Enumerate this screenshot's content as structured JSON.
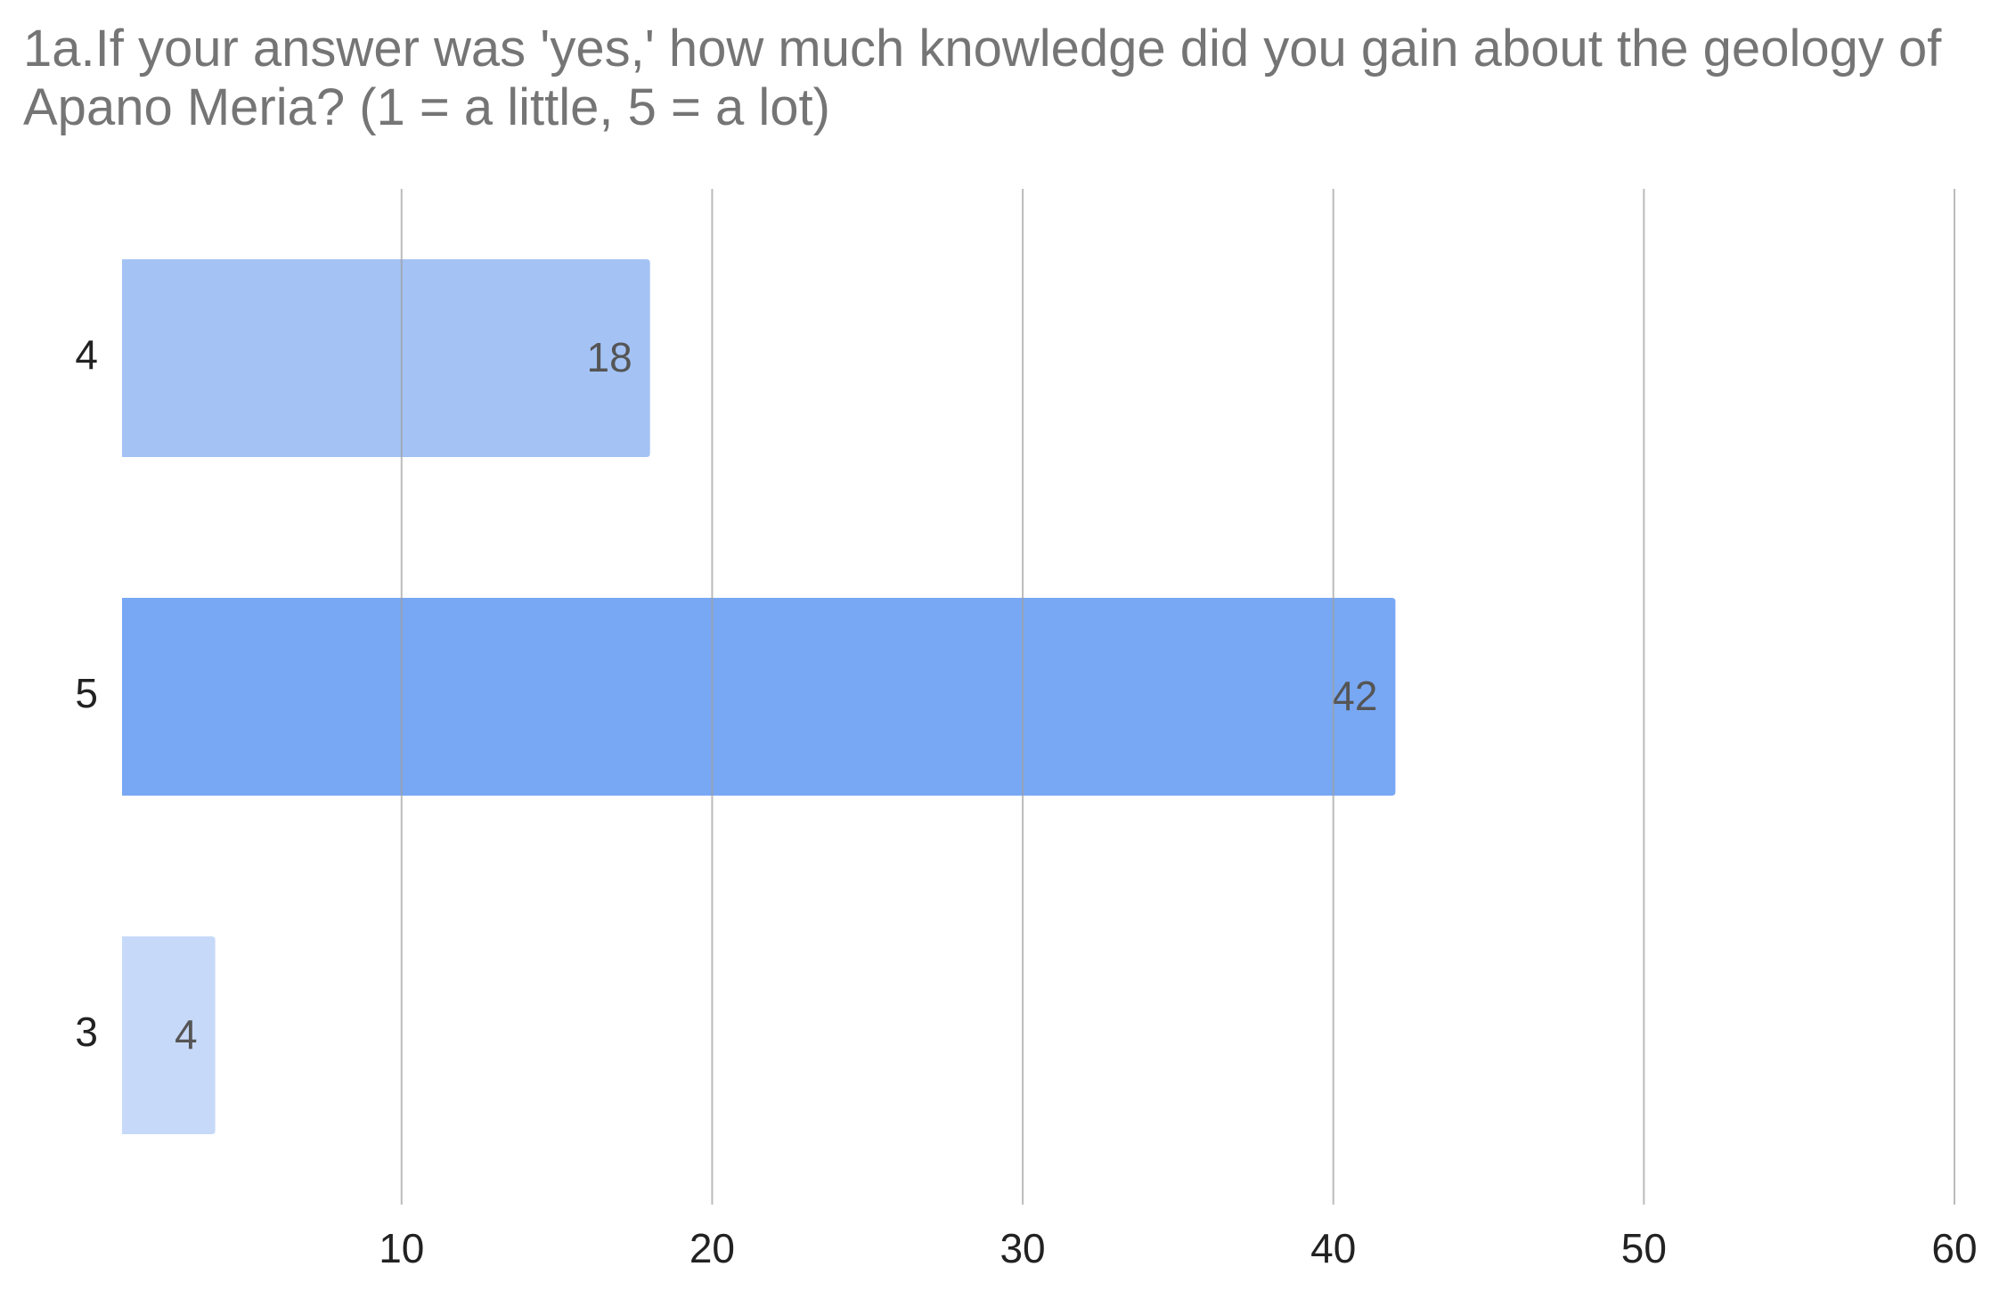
{
  "chart_data": {
    "type": "bar",
    "orientation": "horizontal",
    "title": "1a.If your answer was 'yes,' how much knowledge did you gain about the geology of Apano Meria? (1 = a little, 5 = a lot)",
    "categories": [
      "4",
      "5",
      "3"
    ],
    "values": [
      18,
      42,
      4
    ],
    "colors": [
      "#a4c2f4",
      "#78a8f4",
      "#c6d9f9"
    ],
    "xlim": [
      1,
      60
    ],
    "xticks": [
      10,
      20,
      30,
      40,
      50,
      60
    ],
    "grid": true
  }
}
